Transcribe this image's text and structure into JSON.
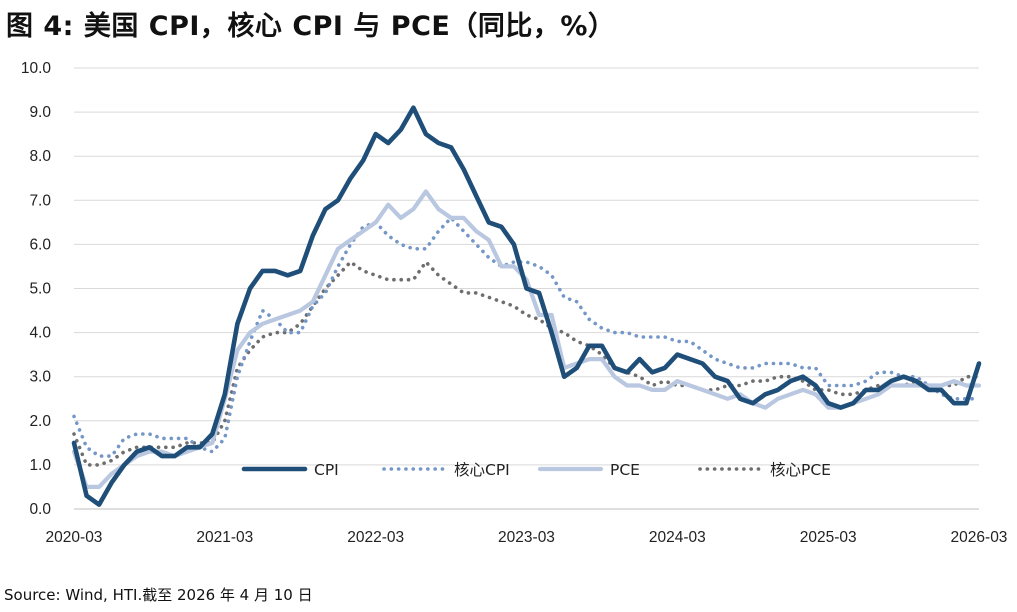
{
  "title": "图 4:  美国 CPI，核心 CPI 与 PCE（同比，%）",
  "source": "Source: Wind, HTI.截至 2026 年 4 月 10 日",
  "chart_data": {
    "type": "line",
    "title": "图 4:  美国 CPI，核心 CPI 与 PCE（同比，%）",
    "xlabel": "",
    "ylabel": "",
    "ylim": [
      0,
      10
    ],
    "yticks": [
      "0.0",
      "1.0",
      "2.0",
      "3.0",
      "4.0",
      "5.0",
      "6.0",
      "7.0",
      "8.0",
      "9.0",
      "10.0"
    ],
    "xticks": [
      "2020-03",
      "2021-03",
      "2022-03",
      "2023-03",
      "2024-03",
      "2025-03",
      "2026-03"
    ],
    "x_start": "2020-03",
    "x_end": "2026-03",
    "legend_position": "bottom-inside",
    "series": [
      {
        "name": "CPI",
        "color": "#1f4e79",
        "style": "solid",
        "values": [
          1.5,
          0.3,
          0.1,
          0.6,
          1.0,
          1.3,
          1.4,
          1.2,
          1.2,
          1.4,
          1.4,
          1.7,
          2.6,
          4.2,
          5.0,
          5.4,
          5.4,
          5.3,
          5.4,
          6.2,
          6.8,
          7.0,
          7.5,
          7.9,
          8.5,
          8.3,
          8.6,
          9.1,
          8.5,
          8.3,
          8.2,
          7.7,
          7.1,
          6.5,
          6.4,
          6.0,
          5.0,
          4.9,
          4.0,
          3.0,
          3.2,
          3.7,
          3.7,
          3.2,
          3.1,
          3.4,
          3.1,
          3.2,
          3.5,
          3.4,
          3.3,
          3.0,
          2.9,
          2.5,
          2.4,
          2.6,
          2.7,
          2.9,
          3.0,
          2.8,
          2.4,
          2.3,
          2.4,
          2.7,
          2.7,
          2.9,
          3.0,
          2.9,
          2.7,
          2.7,
          2.4,
          2.4,
          3.3
        ]
      },
      {
        "name": "核心CPI",
        "color": "#7597c8",
        "style": "dotted",
        "values": [
          2.1,
          1.4,
          1.2,
          1.2,
          1.6,
          1.7,
          1.7,
          1.6,
          1.6,
          1.6,
          1.4,
          1.3,
          1.6,
          3.0,
          3.8,
          4.5,
          4.3,
          4.0,
          4.0,
          4.6,
          4.9,
          5.5,
          6.0,
          6.4,
          6.5,
          6.2,
          6.0,
          5.9,
          5.9,
          6.3,
          6.6,
          6.3,
          6.0,
          5.7,
          5.5,
          5.6,
          5.6,
          5.5,
          5.3,
          4.8,
          4.7,
          4.3,
          4.1,
          4.0,
          4.0,
          3.9,
          3.9,
          3.9,
          3.8,
          3.8,
          3.6,
          3.4,
          3.3,
          3.2,
          3.2,
          3.3,
          3.3,
          3.3,
          3.2,
          3.2,
          2.8,
          2.8,
          2.8,
          2.9,
          3.1,
          3.1,
          3.0,
          3.0,
          2.8,
          2.6,
          2.5,
          2.5,
          2.5
        ]
      },
      {
        "name": "PCE",
        "color": "#b9c8e0",
        "style": "solid",
        "values": [
          1.3,
          0.5,
          0.5,
          0.8,
          1.0,
          1.2,
          1.3,
          1.3,
          1.2,
          1.3,
          1.4,
          1.5,
          2.5,
          3.6,
          4.0,
          4.2,
          4.3,
          4.4,
          4.5,
          4.7,
          5.3,
          5.9,
          6.1,
          6.3,
          6.5,
          6.9,
          6.6,
          6.8,
          7.2,
          6.8,
          6.6,
          6.6,
          6.3,
          6.1,
          5.5,
          5.5,
          5.2,
          4.4,
          4.4,
          3.2,
          3.3,
          3.4,
          3.4,
          3.0,
          2.8,
          2.8,
          2.7,
          2.7,
          2.9,
          2.8,
          2.7,
          2.6,
          2.5,
          2.6,
          2.4,
          2.3,
          2.5,
          2.6,
          2.7,
          2.6,
          2.3,
          2.3,
          2.4,
          2.5,
          2.6,
          2.8,
          2.8,
          2.8,
          2.8,
          2.8,
          2.9,
          2.8,
          2.8
        ]
      },
      {
        "name": "核心PCE",
        "color": "#6e6e6e",
        "style": "dotted",
        "values": [
          1.7,
          1.0,
          1.0,
          1.1,
          1.3,
          1.4,
          1.4,
          1.4,
          1.4,
          1.5,
          1.5,
          1.5,
          2.0,
          3.2,
          3.6,
          3.9,
          4.0,
          4.0,
          4.2,
          4.6,
          5.0,
          5.3,
          5.6,
          5.4,
          5.3,
          5.2,
          5.2,
          5.2,
          5.6,
          5.3,
          5.1,
          4.9,
          4.9,
          4.8,
          4.7,
          4.6,
          4.4,
          4.3,
          4.1,
          4.0,
          3.8,
          3.7,
          3.5,
          3.2,
          3.1,
          3.0,
          2.8,
          2.9,
          2.8,
          2.8,
          2.7,
          2.7,
          2.8,
          2.8,
          2.9,
          2.9,
          3.0,
          3.0,
          2.9,
          2.7,
          2.7,
          2.6,
          2.6,
          2.7,
          2.8,
          2.8,
          2.8,
          2.9,
          2.8,
          2.8,
          2.8,
          3.0,
          3.0
        ]
      }
    ]
  }
}
